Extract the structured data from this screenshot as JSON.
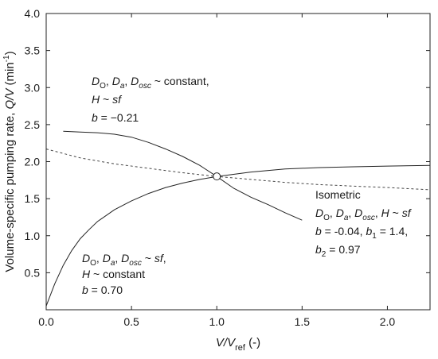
{
  "chart_data": {
    "type": "line",
    "xlim": [
      0,
      2.25
    ],
    "ylim": [
      0,
      4.0
    ],
    "x_ticks": [
      "0.0",
      "0.5",
      "1.0",
      "1.5",
      "2.0"
    ],
    "y_ticks": [
      "0.5",
      "1.0",
      "1.5",
      "2.0",
      "2.5",
      "3.0",
      "3.5",
      "4.0"
    ],
    "xlabel": {
      "main": "V/V",
      "sub": "ref",
      "suffix": " (-)"
    },
    "ylabel": {
      "prefix": "Volume-specific pumping rate, ",
      "main": "Q/V",
      "unit_pre": " (min",
      "unit_sup": "-1",
      "unit_post": ")"
    },
    "grid": false,
    "series": [
      {
        "style": "solid",
        "x": [
          0.1,
          0.2,
          0.3,
          0.4,
          0.5,
          0.6,
          0.7,
          0.8,
          0.9,
          1.0,
          1.1,
          1.2,
          1.3,
          1.4,
          1.5
        ],
        "y": [
          2.41,
          2.4,
          2.39,
          2.37,
          2.33,
          2.26,
          2.17,
          2.07,
          1.95,
          1.8,
          1.64,
          1.52,
          1.42,
          1.31,
          1.21
        ]
      },
      {
        "style": "solid",
        "x": [
          0.0,
          0.05,
          0.1,
          0.15,
          0.2,
          0.25,
          0.3,
          0.4,
          0.5,
          0.6,
          0.7,
          0.8,
          0.9,
          1.0,
          1.2,
          1.4,
          1.6,
          1.8,
          2.0,
          2.25
        ],
        "y": [
          0.05,
          0.35,
          0.6,
          0.8,
          0.96,
          1.08,
          1.19,
          1.35,
          1.47,
          1.57,
          1.65,
          1.71,
          1.76,
          1.8,
          1.86,
          1.9,
          1.92,
          1.93,
          1.94,
          1.95
        ]
      },
      {
        "style": "dashed",
        "x": [
          0.0,
          0.2,
          0.4,
          0.6,
          0.8,
          1.0,
          1.2,
          1.4,
          1.6,
          1.8,
          2.0,
          2.25
        ],
        "y": [
          2.17,
          2.05,
          1.97,
          1.91,
          1.85,
          1.8,
          1.76,
          1.72,
          1.69,
          1.67,
          1.65,
          1.62
        ]
      }
    ],
    "marker": {
      "x": 1.0,
      "y": 1.8,
      "shape": "open-circle"
    },
    "annotations": [
      {
        "id": "upper-left",
        "lines": [
          [
            {
              "t": "D",
              "i": true
            },
            {
              "t": "O",
              "sub": true
            },
            {
              "t": ", "
            },
            {
              "t": "D",
              "i": true
            },
            {
              "t": "a",
              "sub": true,
              "i": true
            },
            {
              "t": ", "
            },
            {
              "t": "D",
              "i": true
            },
            {
              "t": "osc",
              "sub": true,
              "i": true
            },
            {
              "t": " ~ constant,"
            }
          ],
          [
            {
              "t": "H",
              "i": true
            },
            {
              "t": " ~ "
            },
            {
              "t": "sf",
              "i": true
            }
          ],
          [
            {
              "t": "b",
              "i": true
            },
            {
              "t": " = −0.21"
            }
          ]
        ]
      },
      {
        "id": "lower-left",
        "lines": [
          [
            {
              "t": "D",
              "i": true
            },
            {
              "t": "O",
              "sub": true
            },
            {
              "t": ", "
            },
            {
              "t": "D",
              "i": true
            },
            {
              "t": "a",
              "sub": true,
              "i": true
            },
            {
              "t": ", "
            },
            {
              "t": "D",
              "i": true
            },
            {
              "t": "osc",
              "sub": true,
              "i": true
            },
            {
              "t": " ~ "
            },
            {
              "t": "sf",
              "i": true
            },
            {
              "t": ","
            }
          ],
          [
            {
              "t": "H",
              "i": true
            },
            {
              "t": " ~ constant"
            }
          ],
          [
            {
              "t": "b",
              "i": true
            },
            {
              "t": " = 0.70"
            }
          ]
        ]
      },
      {
        "id": "right",
        "lines": [
          [
            {
              "t": "Isometric"
            }
          ],
          [
            {
              "t": "D",
              "i": true
            },
            {
              "t": "O",
              "sub": true
            },
            {
              "t": ", "
            },
            {
              "t": "D",
              "i": true
            },
            {
              "t": "a",
              "sub": true,
              "i": true
            },
            {
              "t": ", "
            },
            {
              "t": "D",
              "i": true
            },
            {
              "t": "osc",
              "sub": true,
              "i": true
            },
            {
              "t": ", "
            },
            {
              "t": "H",
              "i": true
            },
            {
              "t": " ~ "
            },
            {
              "t": "sf",
              "i": true
            }
          ],
          [
            {
              "t": "b",
              "i": true
            },
            {
              "t": " = -0.04, "
            },
            {
              "t": "b",
              "i": true
            },
            {
              "t": "1",
              "sub": true
            },
            {
              "t": " = 1.4,"
            }
          ],
          [
            {
              "t": "b",
              "i": true
            },
            {
              "t": "2",
              "sub": true
            },
            {
              "t": " = 0.97"
            }
          ]
        ]
      }
    ]
  }
}
